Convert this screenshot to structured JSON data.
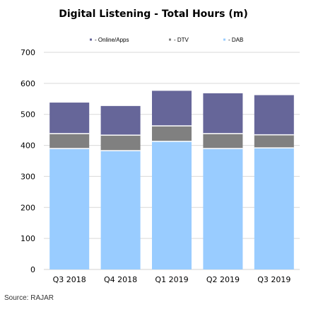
{
  "chart_data": {
    "type": "bar",
    "stacked": true,
    "title": "Digital Listening - Total Hours (m)",
    "categories": [
      "Q3 2018",
      "Q4 2018",
      "Q1 2019",
      "Q2 2019",
      "Q3 2019"
    ],
    "series": [
      {
        "name": "- DAB",
        "color": "#99ccff",
        "values": [
          390,
          383,
          413,
          390,
          392
        ]
      },
      {
        "name": "- DTV",
        "color": "#808080",
        "values": [
          48,
          50,
          50,
          48,
          42
        ]
      },
      {
        "name": "- Online/Apps",
        "color": "#666699",
        "values": [
          100,
          94,
          113,
          130,
          128
        ]
      }
    ],
    "legend_order": [
      "- Online/Apps",
      "- DTV",
      "- DAB"
    ],
    "ylim": [
      0,
      700
    ],
    "yticks": [
      0,
      100,
      200,
      300,
      400,
      500,
      600,
      700
    ],
    "grid": true,
    "legend_position": "top",
    "source": "Source: RAJAR"
  }
}
